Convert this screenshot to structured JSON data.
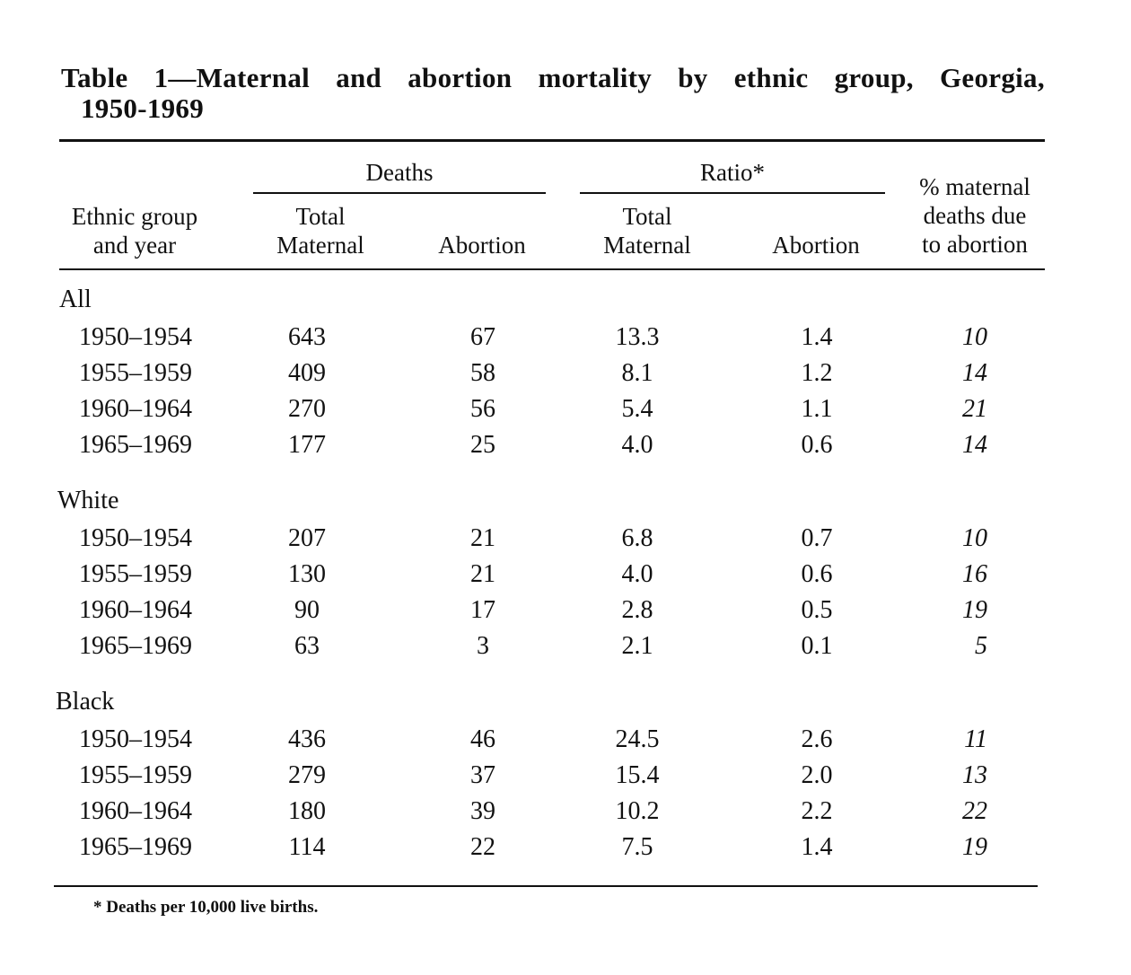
{
  "title": {
    "line1_words": [
      "Table",
      "1—Maternal",
      "and",
      "abortion",
      "mortality",
      "by",
      "ethnic",
      "group,",
      "Georgia,"
    ],
    "line2": "1950-1969"
  },
  "headers": {
    "deaths_group": "Deaths",
    "ratio_group": "Ratio*",
    "ethnic": [
      "Ethnic group",
      "and year"
    ],
    "deaths_total": [
      "Total",
      "Maternal"
    ],
    "deaths_abortion": "Abortion",
    "ratio_total": [
      "Total",
      "Maternal"
    ],
    "ratio_abortion": "Abortion",
    "pct": [
      "% maternal",
      "deaths due",
      "to abortion"
    ]
  },
  "groups": [
    {
      "name": "All",
      "rows": [
        {
          "years": "1950–1954",
          "total_maternal": "643",
          "abortion": "67",
          "ratio_total": "13.3",
          "ratio_abortion": "1.4",
          "pct": "10"
        },
        {
          "years": "1955–1959",
          "total_maternal": "409",
          "abortion": "58",
          "ratio_total": "8.1",
          "ratio_abortion": "1.2",
          "pct": "14"
        },
        {
          "years": "1960–1964",
          "total_maternal": "270",
          "abortion": "56",
          "ratio_total": "5.4",
          "ratio_abortion": "1.1",
          "pct": "21"
        },
        {
          "years": "1965–1969",
          "total_maternal": "177",
          "abortion": "25",
          "ratio_total": "4.0",
          "ratio_abortion": "0.6",
          "pct": "14"
        }
      ]
    },
    {
      "name": "White",
      "rows": [
        {
          "years": "1950–1954",
          "total_maternal": "207",
          "abortion": "21",
          "ratio_total": "6.8",
          "ratio_abortion": "0.7",
          "pct": "10"
        },
        {
          "years": "1955–1959",
          "total_maternal": "130",
          "abortion": "21",
          "ratio_total": "4.0",
          "ratio_abortion": "0.6",
          "pct": "16"
        },
        {
          "years": "1960–1964",
          "total_maternal": "90",
          "abortion": "17",
          "ratio_total": "2.8",
          "ratio_abortion": "0.5",
          "pct": "19"
        },
        {
          "years": "1965–1969",
          "total_maternal": "63",
          "abortion": "3",
          "ratio_total": "2.1",
          "ratio_abortion": "0.1",
          "pct": "5"
        }
      ]
    },
    {
      "name": "Black",
      "rows": [
        {
          "years": "1950–1954",
          "total_maternal": "436",
          "abortion": "46",
          "ratio_total": "24.5",
          "ratio_abortion": "2.6",
          "pct": "11"
        },
        {
          "years": "1955–1959",
          "total_maternal": "279",
          "abortion": "37",
          "ratio_total": "15.4",
          "ratio_abortion": "2.0",
          "pct": "13"
        },
        {
          "years": "1960–1964",
          "total_maternal": "180",
          "abortion": "39",
          "ratio_total": "10.2",
          "ratio_abortion": "2.2",
          "pct": "22"
        },
        {
          "years": "1965–1969",
          "total_maternal": "114",
          "abortion": "22",
          "ratio_total": "7.5",
          "ratio_abortion": "1.4",
          "pct": "19"
        }
      ]
    }
  ],
  "footnote": "* Deaths per 10,000 live births."
}
